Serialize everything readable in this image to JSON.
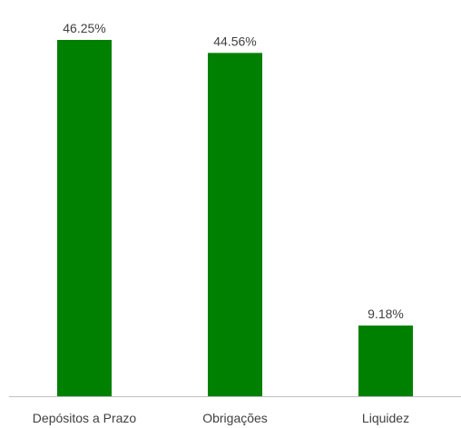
{
  "chart_data": {
    "type": "bar",
    "categories": [
      "Depósitos a Prazo",
      "Obrigações",
      "Liquidez"
    ],
    "values": [
      46.25,
      44.56,
      9.18
    ],
    "data_labels": [
      "46.25%",
      "44.56%",
      "9.18%"
    ],
    "unit": "%",
    "title": "",
    "xlabel": "",
    "ylabel": "",
    "ylim": [
      0,
      46.25
    ],
    "grid": false,
    "legend": "none",
    "bar_color": "#008000",
    "axis_color": "#bfbfbf",
    "text_color": "#404040"
  }
}
